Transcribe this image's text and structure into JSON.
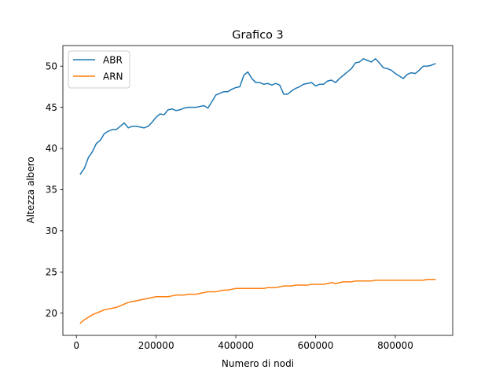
{
  "chart_data": {
    "type": "line",
    "title": "Grafico 3",
    "xlabel": "Numero di nodi",
    "ylabel": "Altezza albero",
    "xlim": [
      -34000,
      944000
    ],
    "ylim": [
      17.3,
      52.5
    ],
    "xticks": [
      0,
      200000,
      400000,
      600000,
      800000
    ],
    "xtick_labels": [
      "0",
      "200000",
      "400000",
      "600000",
      "800000"
    ],
    "yticks": [
      20,
      25,
      30,
      35,
      40,
      45,
      50
    ],
    "ytick_labels": [
      "20",
      "25",
      "30",
      "35",
      "40",
      "45",
      "50"
    ],
    "grid": false,
    "legend_position": "top-left",
    "x": [
      10000,
      20000,
      30000,
      40000,
      50000,
      60000,
      70000,
      80000,
      90000,
      100000,
      110000,
      120000,
      130000,
      140000,
      150000,
      160000,
      170000,
      180000,
      190000,
      200000,
      210000,
      220000,
      230000,
      240000,
      250000,
      260000,
      270000,
      280000,
      290000,
      300000,
      310000,
      320000,
      330000,
      340000,
      350000,
      360000,
      370000,
      380000,
      390000,
      400000,
      410000,
      420000,
      430000,
      440000,
      450000,
      460000,
      470000,
      480000,
      490000,
      500000,
      510000,
      520000,
      530000,
      540000,
      550000,
      560000,
      570000,
      580000,
      590000,
      600000,
      610000,
      620000,
      630000,
      640000,
      650000,
      660000,
      670000,
      680000,
      690000,
      700000,
      710000,
      720000,
      730000,
      740000,
      750000,
      760000,
      770000,
      780000,
      790000,
      800000,
      810000,
      820000,
      830000,
      840000,
      850000,
      860000,
      870000,
      880000,
      890000,
      900000
    ],
    "series": [
      {
        "name": "ABR",
        "color": "#1f77b4",
        "values": [
          36.9,
          37.6,
          38.9,
          39.6,
          40.6,
          41.0,
          41.8,
          42.1,
          42.3,
          42.3,
          42.7,
          43.1,
          42.5,
          42.7,
          42.7,
          42.6,
          42.5,
          42.7,
          43.2,
          43.8,
          44.2,
          44.1,
          44.7,
          44.8,
          44.6,
          44.7,
          44.9,
          45.0,
          45.0,
          45.0,
          45.1,
          45.2,
          44.9,
          45.7,
          46.5,
          46.7,
          46.9,
          46.9,
          47.2,
          47.4,
          47.5,
          48.9,
          49.3,
          48.5,
          48.0,
          48.0,
          47.8,
          47.9,
          47.7,
          47.9,
          47.7,
          46.6,
          46.6,
          47.0,
          47.3,
          47.5,
          47.8,
          47.9,
          48.0,
          47.6,
          47.8,
          47.8,
          48.2,
          48.3,
          48.0,
          48.5,
          48.9,
          49.3,
          49.7,
          50.4,
          50.5,
          50.9,
          50.7,
          50.5,
          50.9,
          50.4,
          49.8,
          49.7,
          49.5,
          49.1,
          48.8,
          48.5,
          49.0,
          49.2,
          49.1,
          49.5,
          50.0,
          50.0,
          50.1,
          50.3
        ]
      },
      {
        "name": "ARN",
        "color": "#ff7f0e",
        "values": [
          18.8,
          19.2,
          19.5,
          19.8,
          20.0,
          20.2,
          20.4,
          20.5,
          20.6,
          20.7,
          20.9,
          21.1,
          21.3,
          21.4,
          21.5,
          21.6,
          21.7,
          21.8,
          21.9,
          22.0,
          22.0,
          22.0,
          22.0,
          22.1,
          22.2,
          22.2,
          22.2,
          22.3,
          22.3,
          22.3,
          22.4,
          22.5,
          22.6,
          22.6,
          22.6,
          22.7,
          22.8,
          22.8,
          22.9,
          23.0,
          23.0,
          23.0,
          23.0,
          23.0,
          23.0,
          23.0,
          23.0,
          23.1,
          23.1,
          23.1,
          23.2,
          23.3,
          23.3,
          23.3,
          23.4,
          23.4,
          23.4,
          23.4,
          23.5,
          23.5,
          23.5,
          23.5,
          23.6,
          23.7,
          23.6,
          23.7,
          23.8,
          23.8,
          23.8,
          23.9,
          23.9,
          23.9,
          23.9,
          23.9,
          24.0,
          24.0,
          24.0,
          24.0,
          24.0,
          24.0,
          24.0,
          24.0,
          24.0,
          24.0,
          24.0,
          24.0,
          24.0,
          24.1,
          24.1,
          24.1
        ]
      }
    ]
  }
}
